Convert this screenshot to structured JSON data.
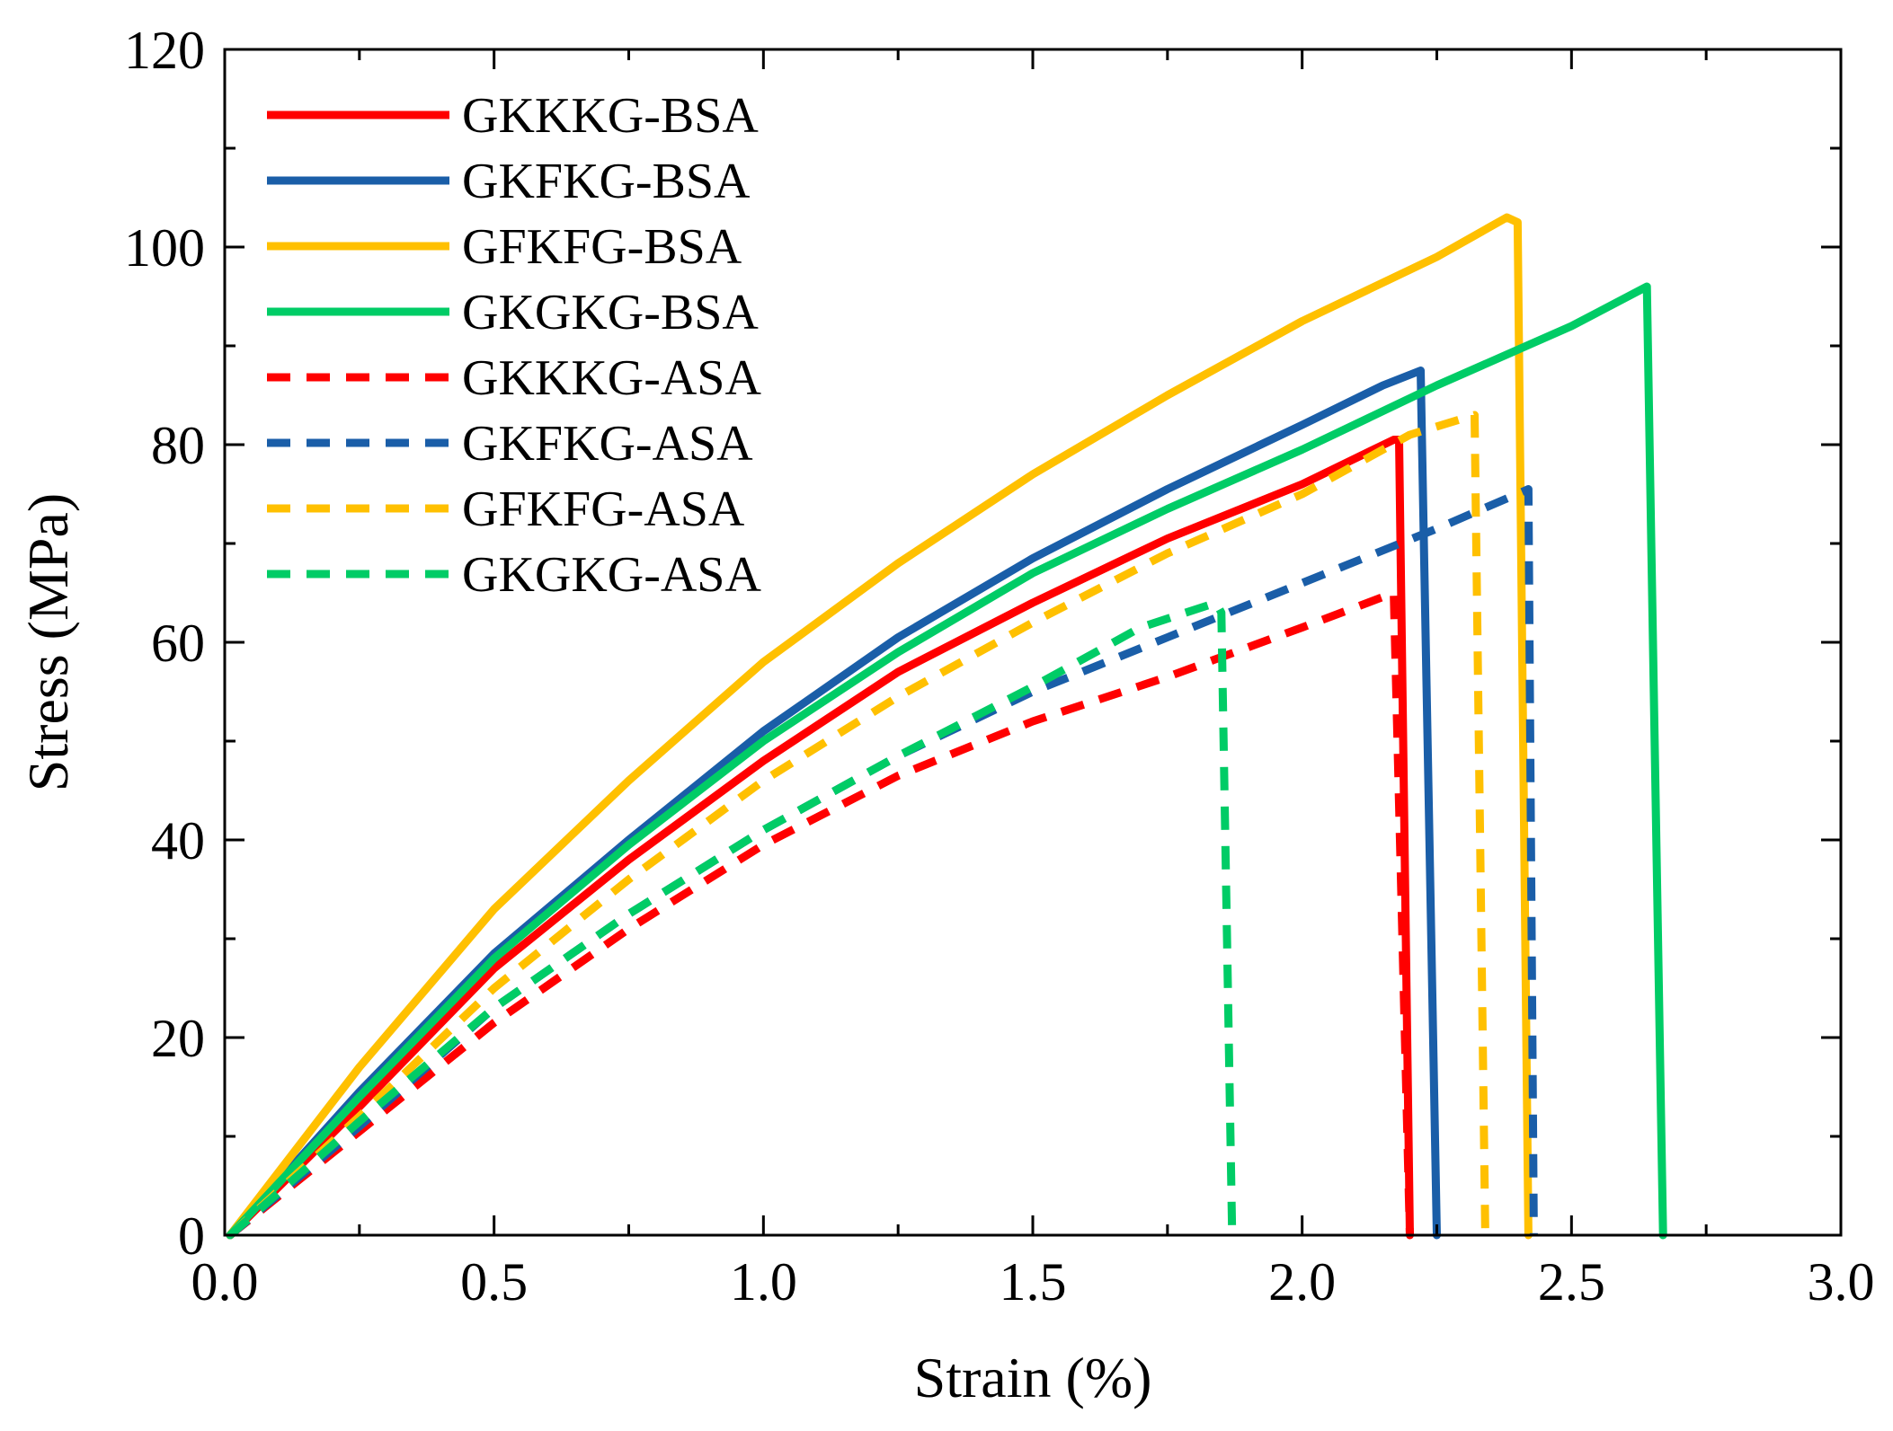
{
  "chart_data": {
    "type": "line",
    "title": "",
    "xlabel": "Strain (%)",
    "ylabel": "Stress (MPa)",
    "xlim": [
      0.0,
      3.0
    ],
    "ylim": [
      0,
      120
    ],
    "x_ticks": [
      "0.0",
      "0.5",
      "1.0",
      "1.5",
      "2.0",
      "2.5",
      "3.0"
    ],
    "y_ticks": [
      "0",
      "20",
      "40",
      "60",
      "80",
      "100",
      "120"
    ],
    "legend_position": "top-left",
    "grid": false,
    "series": [
      {
        "name": "GKKKG-BSA",
        "color": "#ff0000",
        "style": "solid",
        "points": [
          [
            0.01,
            0
          ],
          [
            0.25,
            13
          ],
          [
            0.5,
            27
          ],
          [
            0.75,
            38
          ],
          [
            1.0,
            48
          ],
          [
            1.25,
            57
          ],
          [
            1.5,
            64
          ],
          [
            1.75,
            70.5
          ],
          [
            2.0,
            76
          ],
          [
            2.17,
            80.5
          ],
          [
            2.18,
            80.5
          ],
          [
            2.2,
            0
          ]
        ]
      },
      {
        "name": "GKFKG-BSA",
        "color": "#1a5ea8",
        "style": "solid",
        "points": [
          [
            0.01,
            0
          ],
          [
            0.25,
            14.5
          ],
          [
            0.5,
            28.5
          ],
          [
            0.75,
            40
          ],
          [
            1.0,
            51
          ],
          [
            1.25,
            60.5
          ],
          [
            1.5,
            68.5
          ],
          [
            1.75,
            75.5
          ],
          [
            2.0,
            82
          ],
          [
            2.15,
            86
          ],
          [
            2.22,
            87.5
          ],
          [
            2.25,
            0
          ]
        ]
      },
      {
        "name": "GFKFG-BSA",
        "color": "#ffc000",
        "style": "solid",
        "points": [
          [
            0.01,
            0
          ],
          [
            0.25,
            17
          ],
          [
            0.5,
            33
          ],
          [
            0.75,
            46
          ],
          [
            1.0,
            58
          ],
          [
            1.25,
            68
          ],
          [
            1.5,
            77
          ],
          [
            1.75,
            85
          ],
          [
            2.0,
            92.5
          ],
          [
            2.25,
            99
          ],
          [
            2.38,
            103
          ],
          [
            2.4,
            102.5
          ],
          [
            2.42,
            0
          ]
        ]
      },
      {
        "name": "GKGKG-BSA",
        "color": "#00cc66",
        "style": "solid",
        "points": [
          [
            0.01,
            0
          ],
          [
            0.25,
            14
          ],
          [
            0.5,
            28
          ],
          [
            0.75,
            39.5
          ],
          [
            1.0,
            50
          ],
          [
            1.25,
            59
          ],
          [
            1.5,
            67
          ],
          [
            1.75,
            73.5
          ],
          [
            2.0,
            79.5
          ],
          [
            2.25,
            86
          ],
          [
            2.5,
            92
          ],
          [
            2.64,
            96
          ],
          [
            2.67,
            0
          ]
        ]
      },
      {
        "name": "GKKKG-ASA",
        "color": "#ff0000",
        "style": "dashed",
        "points": [
          [
            0.01,
            0
          ],
          [
            0.25,
            10.5
          ],
          [
            0.5,
            21.5
          ],
          [
            0.75,
            31
          ],
          [
            1.0,
            39.5
          ],
          [
            1.25,
            46.5
          ],
          [
            1.5,
            52
          ],
          [
            1.75,
            56.5
          ],
          [
            2.0,
            61.5
          ],
          [
            2.17,
            65
          ],
          [
            2.2,
            0
          ]
        ]
      },
      {
        "name": "GKFKG-ASA",
        "color": "#1a5ea8",
        "style": "dashed",
        "points": [
          [
            0.01,
            0
          ],
          [
            0.25,
            11
          ],
          [
            0.5,
            23
          ],
          [
            0.75,
            32.5
          ],
          [
            1.0,
            41
          ],
          [
            1.25,
            48.5
          ],
          [
            1.5,
            55
          ],
          [
            1.75,
            60.5
          ],
          [
            2.0,
            66
          ],
          [
            2.25,
            71.5
          ],
          [
            2.42,
            75.5
          ],
          [
            2.43,
            0
          ]
        ]
      },
      {
        "name": "GFKFG-ASA",
        "color": "#ffc000",
        "style": "dashed",
        "points": [
          [
            0.01,
            0
          ],
          [
            0.25,
            12
          ],
          [
            0.5,
            25
          ],
          [
            0.75,
            36
          ],
          [
            1.0,
            46
          ],
          [
            1.25,
            54.5
          ],
          [
            1.5,
            62
          ],
          [
            1.75,
            69
          ],
          [
            2.0,
            75
          ],
          [
            2.2,
            81
          ],
          [
            2.32,
            83
          ],
          [
            2.34,
            0
          ]
        ]
      },
      {
        "name": "GKGKG-ASA",
        "color": "#00cc66",
        "style": "dashed",
        "points": [
          [
            0.01,
            0
          ],
          [
            0.25,
            11.5
          ],
          [
            0.5,
            23
          ],
          [
            0.75,
            32.5
          ],
          [
            1.0,
            41
          ],
          [
            1.25,
            48.5
          ],
          [
            1.5,
            55.5
          ],
          [
            1.7,
            61.5
          ],
          [
            1.84,
            64
          ],
          [
            1.85,
            63
          ],
          [
            1.87,
            0
          ]
        ]
      }
    ]
  }
}
